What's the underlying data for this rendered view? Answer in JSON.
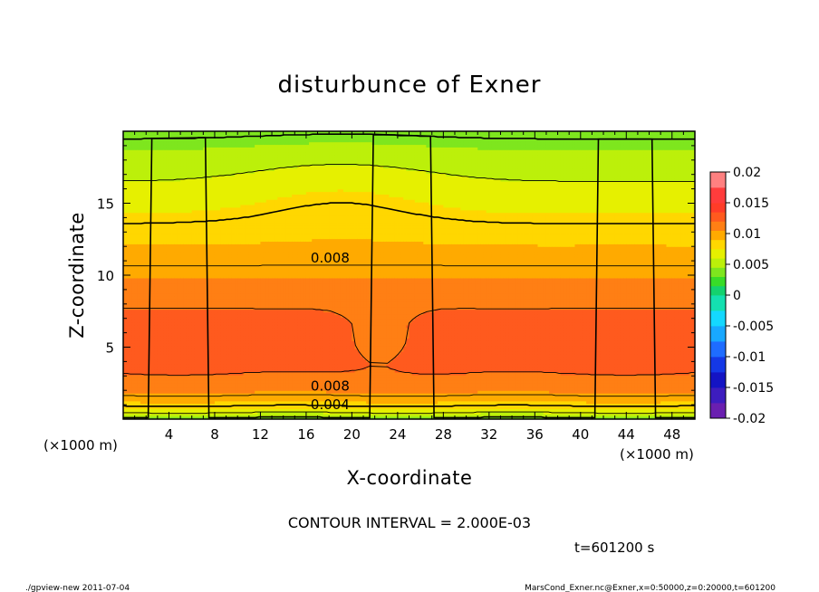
{
  "chart_data": {
    "type": "contour",
    "title": "disturbunce of Exner",
    "xlabel": "X-coordinate",
    "ylabel": "Z-coordinate",
    "x_unit_left": "(×1000 m)",
    "x_unit_right": "(×1000 m)",
    "xlim": [
      0,
      50
    ],
    "ylim": [
      0,
      20
    ],
    "x_ticks": [
      4,
      8,
      12,
      16,
      20,
      24,
      28,
      32,
      36,
      40,
      44,
      48
    ],
    "y_ticks": [
      5,
      10,
      15
    ],
    "colorbar": {
      "ticks": [
        "0.02",
        "0.015",
        "0.01",
        "0.005",
        "0",
        "-0.005",
        "-0.01",
        "-0.015",
        "-0.02"
      ],
      "range": [
        -0.02,
        0.02
      ],
      "levels": [
        {
          "lo": -0.02,
          "color": "#6a1fb0"
        },
        {
          "lo": -0.0175,
          "color": "#3d1dbf"
        },
        {
          "lo": -0.015,
          "color": "#1414c4"
        },
        {
          "lo": -0.0125,
          "color": "#1438e6"
        },
        {
          "lo": -0.01,
          "color": "#1e6cff"
        },
        {
          "lo": -0.0075,
          "color": "#18a8ff"
        },
        {
          "lo": -0.005,
          "color": "#14d8ff"
        },
        {
          "lo": -0.0025,
          "color": "#14e0b0"
        },
        {
          "lo": 0.0,
          "color": "#14d26e"
        },
        {
          "lo": 0.0015,
          "color": "#38dc28"
        },
        {
          "lo": 0.003,
          "color": "#7ee61e"
        },
        {
          "lo": 0.0045,
          "color": "#bcf00a"
        },
        {
          "lo": 0.006,
          "color": "#e6f000"
        },
        {
          "lo": 0.0075,
          "color": "#ffd700"
        },
        {
          "lo": 0.009,
          "color": "#ffaa00"
        },
        {
          "lo": 0.0105,
          "color": "#ff7f14"
        },
        {
          "lo": 0.012,
          "color": "#ff5a1e"
        },
        {
          "lo": 0.0135,
          "color": "#ff3c28"
        },
        {
          "lo": 0.015,
          "color": "#ff3c3c"
        },
        {
          "lo": 0.0175,
          "color": "#ff8080"
        }
      ]
    },
    "contour_labels": [
      {
        "text": "0.008",
        "x": 18.1,
        "z": 11.2
      },
      {
        "text": "0.008",
        "x": 18.1,
        "z": 2.3
      },
      {
        "text": "0.004",
        "x": 18.1,
        "z": 1.0
      }
    ],
    "contour_interval_text": "CONTOUR INTERVAL = 2.000E-03",
    "time_text": "t=601200 s"
  },
  "footer": {
    "left": "./gpview-new   2011-07-04",
    "right": "MarsCond_Exner.nc@Exner,x=0:50000,z=0:20000,t=601200"
  }
}
